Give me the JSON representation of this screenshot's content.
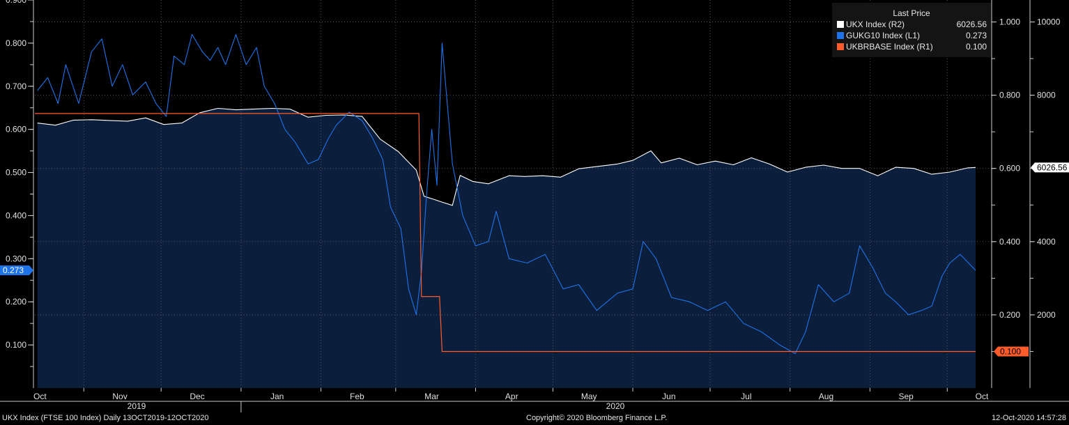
{
  "chart_data": {
    "type": "line",
    "xlim": [
      "2019-10-13",
      "2020-10-12"
    ],
    "x_ticks": [
      "Oct",
      "Nov",
      "Dec",
      "Jan",
      "Feb",
      "Mar",
      "Apr",
      "May",
      "Jun",
      "Jul",
      "Aug",
      "Sep",
      "Oct"
    ],
    "year_labels": [
      "2019",
      "2020"
    ],
    "axes": {
      "left": {
        "min": 0.0,
        "max": 0.9,
        "ticks": [
          "0.100",
          "0.200",
          "0.300",
          "0.400",
          "0.500",
          "0.600",
          "0.700",
          "0.800",
          "0.900"
        ]
      },
      "right1": {
        "min": 0.0,
        "max": 1.06,
        "ticks": [
          "0.200",
          "0.400",
          "0.600",
          "0.800",
          "1.000"
        ]
      },
      "right2": {
        "min": 0,
        "max": 10600,
        "ticks": [
          "2000",
          "4000",
          "6000",
          "8000",
          "10000"
        ]
      }
    },
    "legend": {
      "header": "Last Price",
      "entries": [
        {
          "name": "UKX Index  (R2)",
          "value": "6026.56",
          "color": "#ffffff"
        },
        {
          "name": "GUKG10 Index  (L1)",
          "value": "0.273",
          "color": "#1e73e8"
        },
        {
          "name": "UKBRBASE Index  (R1)",
          "value": "0.100",
          "color": "#ff5b2b"
        }
      ]
    },
    "last_value_tags": {
      "left": "0.273",
      "r1": "0.100",
      "r2": "6026.56"
    },
    "series": [
      {
        "name": "UKX Index  (R2)",
        "axis": "right2",
        "color": "#ffffff",
        "fill": "#0b1e3c",
        "points": [
          [
            "2019-10-14",
            7240
          ],
          [
            "2019-10-21",
            7180
          ],
          [
            "2019-10-28",
            7320
          ],
          [
            "2019-11-04",
            7330
          ],
          [
            "2019-11-11",
            7310
          ],
          [
            "2019-11-18",
            7290
          ],
          [
            "2019-11-25",
            7380
          ],
          [
            "2019-12-02",
            7200
          ],
          [
            "2019-12-09",
            7240
          ],
          [
            "2019-12-16",
            7520
          ],
          [
            "2019-12-23",
            7640
          ],
          [
            "2019-12-30",
            7600
          ],
          [
            "2020-01-06",
            7620
          ],
          [
            "2020-01-13",
            7640
          ],
          [
            "2020-01-20",
            7620
          ],
          [
            "2020-01-27",
            7400
          ],
          [
            "2020-02-03",
            7450
          ],
          [
            "2020-02-10",
            7460
          ],
          [
            "2020-02-17",
            7420
          ],
          [
            "2020-02-24",
            6800
          ],
          [
            "2020-03-02",
            6460
          ],
          [
            "2020-03-09",
            5950
          ],
          [
            "2020-03-12",
            5240
          ],
          [
            "2020-03-16",
            5150
          ],
          [
            "2020-03-19",
            5080
          ],
          [
            "2020-03-23",
            4990
          ],
          [
            "2020-03-26",
            5810
          ],
          [
            "2020-03-31",
            5640
          ],
          [
            "2020-04-06",
            5580
          ],
          [
            "2020-04-14",
            5800
          ],
          [
            "2020-04-20",
            5780
          ],
          [
            "2020-04-27",
            5800
          ],
          [
            "2020-05-04",
            5760
          ],
          [
            "2020-05-11",
            5990
          ],
          [
            "2020-05-18",
            6050
          ],
          [
            "2020-05-26",
            6120
          ],
          [
            "2020-06-01",
            6220
          ],
          [
            "2020-06-08",
            6480
          ],
          [
            "2020-06-12",
            6150
          ],
          [
            "2020-06-19",
            6280
          ],
          [
            "2020-06-26",
            6100
          ],
          [
            "2020-07-03",
            6200
          ],
          [
            "2020-07-10",
            6100
          ],
          [
            "2020-07-17",
            6290
          ],
          [
            "2020-07-24",
            6120
          ],
          [
            "2020-07-31",
            5900
          ],
          [
            "2020-08-07",
            6030
          ],
          [
            "2020-08-14",
            6090
          ],
          [
            "2020-08-21",
            6000
          ],
          [
            "2020-08-28",
            6000
          ],
          [
            "2020-09-04",
            5800
          ],
          [
            "2020-09-11",
            6030
          ],
          [
            "2020-09-18",
            6000
          ],
          [
            "2020-09-25",
            5840
          ],
          [
            "2020-10-02",
            5900
          ],
          [
            "2020-10-09",
            6016
          ],
          [
            "2020-10-12",
            6026.56
          ]
        ]
      },
      {
        "name": "GUKG10 Index  (L1)",
        "axis": "left",
        "color": "#1e73e8",
        "points": [
          [
            "2019-10-14",
            0.69
          ],
          [
            "2019-10-18",
            0.72
          ],
          [
            "2019-10-22",
            0.66
          ],
          [
            "2019-10-25",
            0.75
          ],
          [
            "2019-10-30",
            0.66
          ],
          [
            "2019-11-04",
            0.78
          ],
          [
            "2019-11-08",
            0.81
          ],
          [
            "2019-11-12",
            0.7
          ],
          [
            "2019-11-16",
            0.75
          ],
          [
            "2019-11-20",
            0.68
          ],
          [
            "2019-11-25",
            0.71
          ],
          [
            "2019-11-29",
            0.66
          ],
          [
            "2019-12-03",
            0.63
          ],
          [
            "2019-12-06",
            0.77
          ],
          [
            "2019-12-10",
            0.75
          ],
          [
            "2019-12-13",
            0.82
          ],
          [
            "2019-12-17",
            0.78
          ],
          [
            "2019-12-20",
            0.76
          ],
          [
            "2019-12-23",
            0.79
          ],
          [
            "2019-12-26",
            0.75
          ],
          [
            "2019-12-30",
            0.82
          ],
          [
            "2020-01-03",
            0.75
          ],
          [
            "2020-01-07",
            0.79
          ],
          [
            "2020-01-10",
            0.7
          ],
          [
            "2020-01-14",
            0.66
          ],
          [
            "2020-01-18",
            0.6
          ],
          [
            "2020-01-22",
            0.57
          ],
          [
            "2020-01-27",
            0.52
          ],
          [
            "2020-01-31",
            0.53
          ],
          [
            "2020-02-04",
            0.58
          ],
          [
            "2020-02-07",
            0.61
          ],
          [
            "2020-02-12",
            0.64
          ],
          [
            "2020-02-17",
            0.62
          ],
          [
            "2020-02-21",
            0.58
          ],
          [
            "2020-02-25",
            0.53
          ],
          [
            "2020-02-28",
            0.42
          ],
          [
            "2020-03-03",
            0.37
          ],
          [
            "2020-03-06",
            0.23
          ],
          [
            "2020-03-09",
            0.17
          ],
          [
            "2020-03-11",
            0.27
          ],
          [
            "2020-03-13",
            0.45
          ],
          [
            "2020-03-15",
            0.6
          ],
          [
            "2020-03-17",
            0.47
          ],
          [
            "2020-03-19",
            0.8
          ],
          [
            "2020-03-23",
            0.52
          ],
          [
            "2020-03-27",
            0.4
          ],
          [
            "2020-04-01",
            0.33
          ],
          [
            "2020-04-06",
            0.34
          ],
          [
            "2020-04-09",
            0.41
          ],
          [
            "2020-04-14",
            0.3
          ],
          [
            "2020-04-21",
            0.29
          ],
          [
            "2020-04-28",
            0.31
          ],
          [
            "2020-05-05",
            0.23
          ],
          [
            "2020-05-11",
            0.24
          ],
          [
            "2020-05-18",
            0.18
          ],
          [
            "2020-05-26",
            0.22
          ],
          [
            "2020-06-01",
            0.23
          ],
          [
            "2020-06-05",
            0.34
          ],
          [
            "2020-06-10",
            0.3
          ],
          [
            "2020-06-16",
            0.21
          ],
          [
            "2020-06-23",
            0.2
          ],
          [
            "2020-06-30",
            0.18
          ],
          [
            "2020-07-07",
            0.2
          ],
          [
            "2020-07-14",
            0.15
          ],
          [
            "2020-07-21",
            0.13
          ],
          [
            "2020-07-28",
            0.1
          ],
          [
            "2020-08-03",
            0.08
          ],
          [
            "2020-08-07",
            0.13
          ],
          [
            "2020-08-12",
            0.24
          ],
          [
            "2020-08-18",
            0.2
          ],
          [
            "2020-08-24",
            0.22
          ],
          [
            "2020-08-28",
            0.33
          ],
          [
            "2020-09-02",
            0.28
          ],
          [
            "2020-09-07",
            0.22
          ],
          [
            "2020-09-11",
            0.2
          ],
          [
            "2020-09-16",
            0.17
          ],
          [
            "2020-09-21",
            0.18
          ],
          [
            "2020-09-25",
            0.19
          ],
          [
            "2020-09-29",
            0.26
          ],
          [
            "2020-10-02",
            0.29
          ],
          [
            "2020-10-06",
            0.31
          ],
          [
            "2020-10-12",
            0.273
          ]
        ]
      },
      {
        "name": "UKBRBASE Index  (R1)",
        "axis": "right1",
        "color": "#ff5b2b",
        "points": [
          [
            "2019-10-13",
            0.75
          ],
          [
            "2020-03-10",
            0.75
          ],
          [
            "2020-03-11",
            0.25
          ],
          [
            "2020-03-18",
            0.25
          ],
          [
            "2020-03-19",
            0.1
          ],
          [
            "2020-10-12",
            0.1
          ]
        ]
      }
    ]
  },
  "footer": {
    "left": "UKX Index (FTSE 100 Index)  Daily 13OCT2019-12OCT2020",
    "center": "Copyright© 2020 Bloomberg Finance L.P.",
    "right": "12-Oct-2020 14:57:28"
  }
}
